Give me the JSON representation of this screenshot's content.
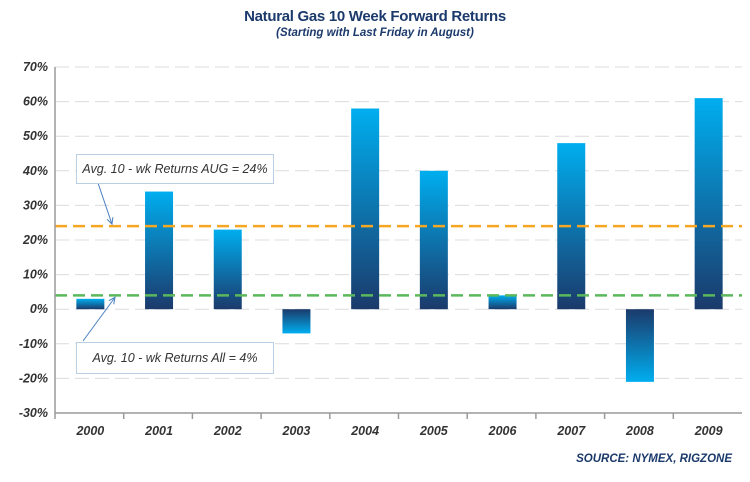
{
  "chart_data": {
    "type": "bar",
    "title": "Natural Gas 10 Week Forward Returns",
    "subtitle": "(Starting with Last Friday in August)",
    "xlabel": "",
    "ylabel": "",
    "categories": [
      "2000",
      "2001",
      "2002",
      "2003",
      "2004",
      "2005",
      "2006",
      "2007",
      "2008",
      "2009"
    ],
    "values": [
      3,
      34,
      23,
      -7,
      58,
      40,
      4,
      48,
      -21,
      61
    ],
    "value_unit": "%",
    "ylim": [
      -30,
      70
    ],
    "yticks": [
      -30,
      -20,
      -10,
      0,
      10,
      20,
      30,
      40,
      50,
      60,
      70
    ],
    "ytick_labels": [
      "-30%",
      "-20%",
      "-10%",
      "0%",
      "10%",
      "20%",
      "30%",
      "40%",
      "50%",
      "60%",
      "70%"
    ],
    "grid": true,
    "reference_lines": [
      {
        "name": "aug-average",
        "value": 24,
        "color": "#f5a623",
        "style": "dashed",
        "label": "Avg. 10 -  wk Returns AUG = 24%"
      },
      {
        "name": "all-average",
        "value": 4,
        "color": "#5cb85c",
        "style": "dashed",
        "label": "Avg. 10 -  wk Returns All = 4%"
      }
    ],
    "bar_colors": {
      "light": "#00aeef",
      "dark": "#1b3a6b"
    },
    "source": "SOURCE: NYMEX, RIGZONE"
  }
}
